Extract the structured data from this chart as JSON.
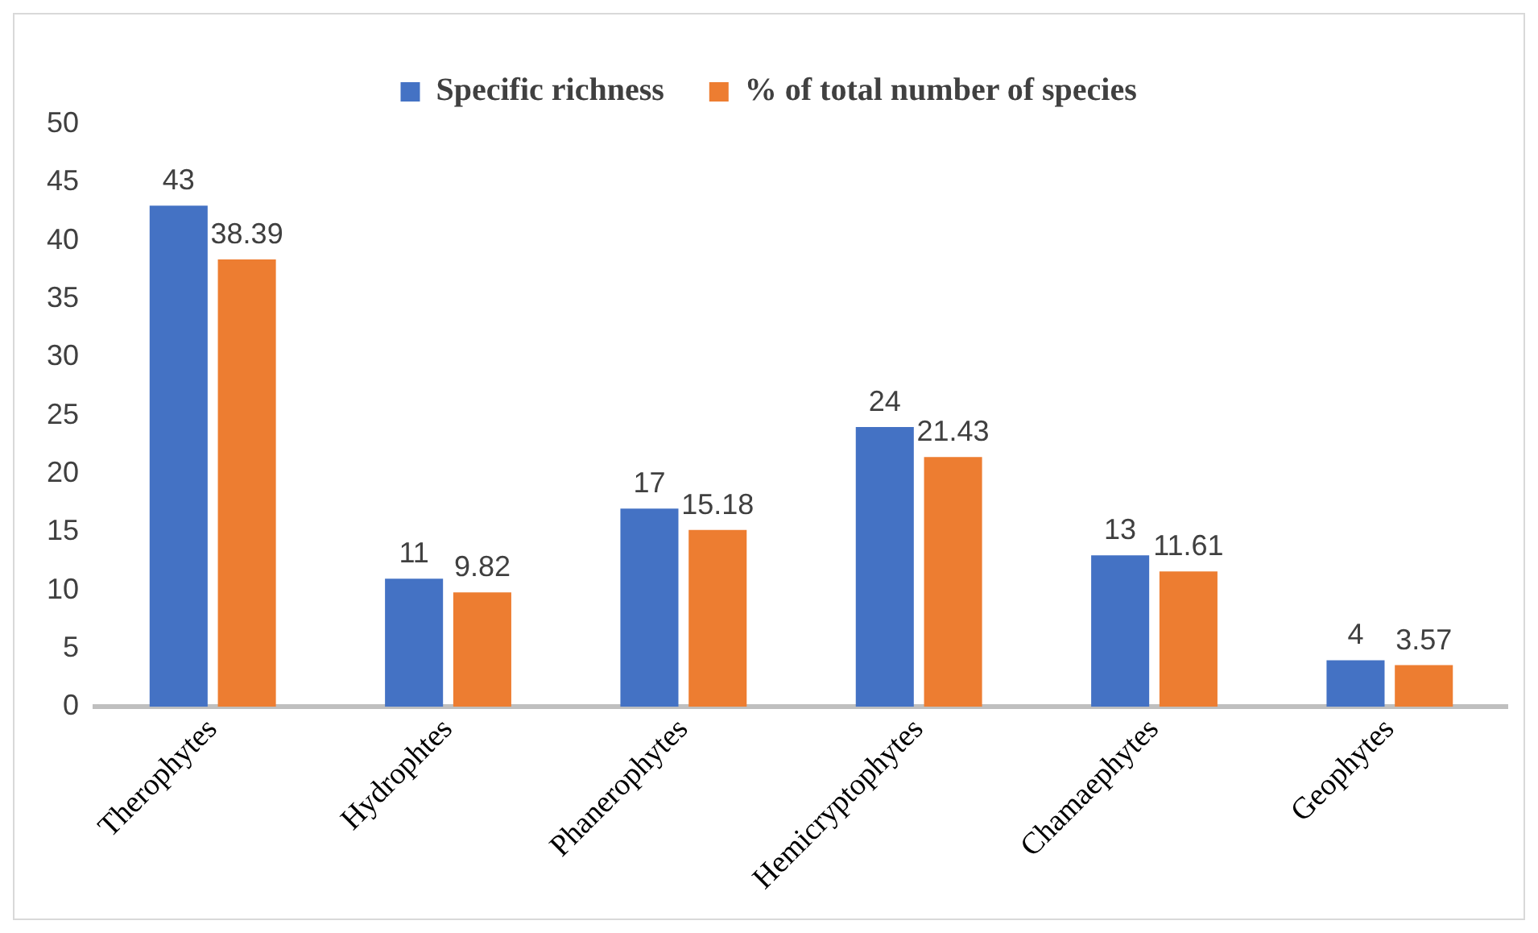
{
  "chart_data": {
    "type": "bar",
    "categories": [
      "Therophytes",
      "Hydrophtes",
      "Phanerophytes",
      "Hemicryptophytes",
      "Chamaephytes",
      "Geophytes"
    ],
    "series": [
      {
        "name": "Specific richness",
        "color": "#4472c4",
        "values": [
          43,
          11,
          17,
          24,
          13,
          4
        ]
      },
      {
        "name": "% of total number of species",
        "color": "#ed7d31",
        "values": [
          38.39,
          9.82,
          15.18,
          21.43,
          11.61,
          3.57
        ]
      }
    ],
    "ylim": [
      0,
      50
    ],
    "yticks": [
      0,
      5,
      10,
      15,
      20,
      25,
      30,
      35,
      40,
      45,
      50
    ],
    "grid": false,
    "legend": "top",
    "data_labels": true
  }
}
